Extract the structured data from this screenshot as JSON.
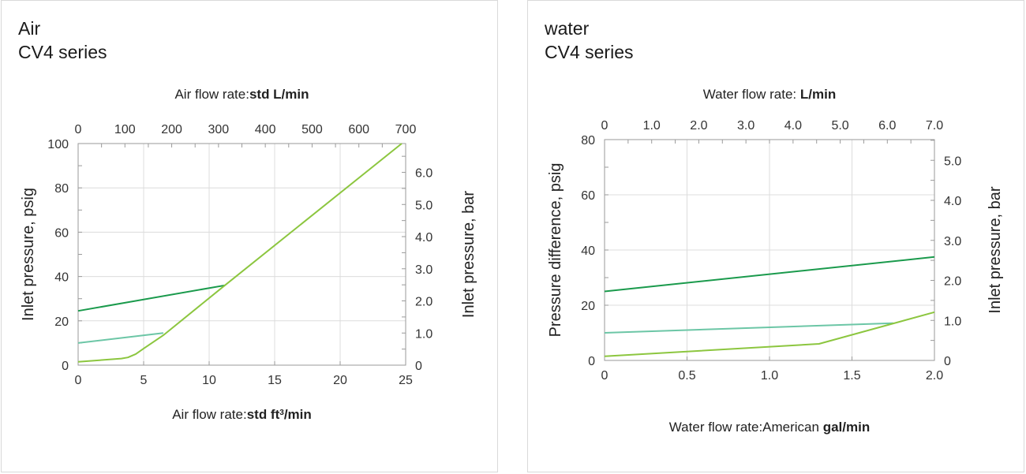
{
  "panels": [
    {
      "title_line1": "Air",
      "title_line2": "CV4 series"
    },
    {
      "title_line1": "water",
      "title_line2": "CV4 series"
    }
  ],
  "chart_data": [
    {
      "type": "line",
      "top_axis": {
        "label_prefix": "Air flow rate:",
        "label_unit": "std L/min",
        "ticks": [
          "0",
          "100",
          "200",
          "300",
          "400",
          "500",
          "600",
          "700"
        ],
        "range": [
          0,
          700
        ]
      },
      "bottom_axis": {
        "label_prefix": "Air flow rate:",
        "label_unit": "std ft",
        "label_sup": "3",
        "label_unit_suffix": "/min",
        "ticks": [
          "0",
          "5",
          "10",
          "15",
          "20",
          "25"
        ],
        "range": [
          0,
          25
        ]
      },
      "left_axis": {
        "label": "Inlet pressure, psig",
        "ticks": [
          "0",
          "20",
          "40",
          "60",
          "80",
          "100"
        ],
        "range": [
          0,
          100
        ]
      },
      "right_axis": {
        "label": "Inlet pressure, bar",
        "ticks": [
          "0",
          "1.0",
          "2.0",
          "3.0",
          "4.0",
          "5.0",
          "6.0"
        ],
        "values": [
          0,
          1,
          2,
          3,
          4,
          5,
          6
        ],
        "psig_per_bar": 14.5
      },
      "grid": true,
      "series": [
        {
          "color": "#1a9a4c",
          "x": [
            0,
            11.2
          ],
          "y": [
            24.5,
            36
          ]
        },
        {
          "color": "#6cc6a6",
          "x": [
            0,
            6.5
          ],
          "y": [
            10,
            14.5
          ]
        },
        {
          "color": "#8cc63f",
          "x": [
            0,
            3.3,
            3.8,
            4.4,
            5.0,
            6.5,
            11.2,
            24.7
          ],
          "y": [
            1.5,
            3,
            3.5,
            5,
            7.5,
            13.5,
            36,
            100
          ]
        }
      ]
    },
    {
      "type": "line",
      "top_axis": {
        "label_prefix": "Water flow rate: ",
        "label_unit": "L/min",
        "ticks": [
          "0",
          "1.0",
          "2.0",
          "3.0",
          "4.0",
          "5.0",
          "6.0",
          "7.0"
        ],
        "range": [
          0,
          7
        ]
      },
      "bottom_axis": {
        "label_prefix": "Water flow rate:American ",
        "label_unit": "gal/min",
        "ticks": [
          "0",
          "0.5",
          "1.0",
          "1.5",
          "2.0"
        ],
        "range": [
          0,
          2
        ]
      },
      "left_axis": {
        "label": "Pressure difference, psig",
        "ticks": [
          "0",
          "20",
          "40",
          "60",
          "80"
        ],
        "range": [
          0,
          80
        ]
      },
      "right_axis": {
        "label": "Inlet pressure, bar",
        "ticks": [
          "0",
          "1.0",
          "2.0",
          "3.0",
          "4.0",
          "5.0"
        ],
        "values": [
          0,
          1,
          2,
          3,
          4,
          5
        ],
        "psig_per_bar": 14.5
      },
      "grid": true,
      "series": [
        {
          "color": "#1a9a4c",
          "x": [
            0,
            2.0
          ],
          "y": [
            25,
            37.5
          ]
        },
        {
          "color": "#6cc6a6",
          "x": [
            0,
            1.75
          ],
          "y": [
            10,
            13.5
          ]
        },
        {
          "color": "#8cc63f",
          "x": [
            0,
            1.3,
            2.0
          ],
          "y": [
            1.5,
            6,
            17.5
          ]
        }
      ]
    }
  ]
}
